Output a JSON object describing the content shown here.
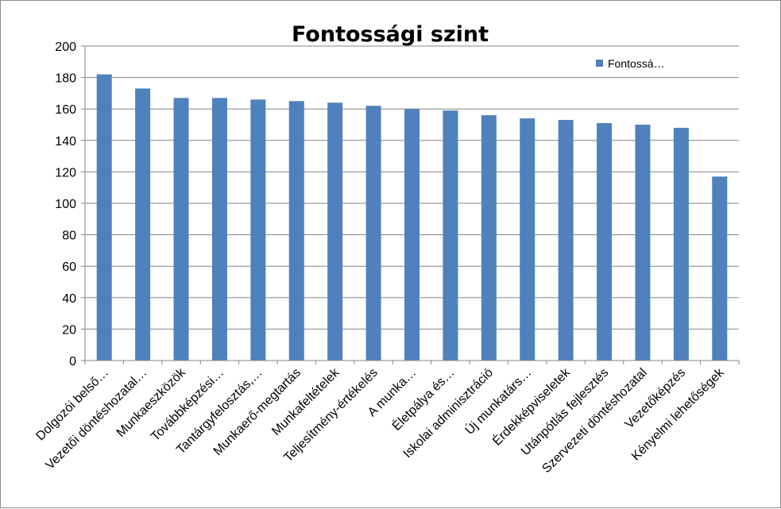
{
  "chart_data": {
    "type": "bar",
    "title": "Fontossági szint",
    "xlabel": "",
    "ylabel": "",
    "categories": [
      "Dolgozói belső…",
      "Vezetői döntéshozatal…",
      "Munkaeszközök",
      "Továbbképzési…",
      "Tantárgyfelosztás,…",
      "Munkaerő-megtartás",
      "Munkafeltételek",
      "Teljesítmény-értékelés",
      "A munka…",
      "Életpálya és…",
      "Iskolai adminisztráció",
      "Új munkatárs…",
      "Érdekképviseletek",
      "Utánpótlás fejlesztés",
      "Szervezeti döntéshozatal",
      "Vezetőképzés",
      "Kényelmi lehetőségek"
    ],
    "series": [
      {
        "name": "Fontossá…",
        "color": "#4f81bd",
        "values": [
          182,
          173,
          167,
          167,
          166,
          165,
          164,
          162,
          160,
          159,
          156,
          154,
          153,
          151,
          150,
          148,
          117
        ]
      }
    ],
    "ylim": [
      0,
      200
    ],
    "y_ticks": [
      "0",
      "20",
      "40",
      "60",
      "80",
      "100",
      "120",
      "140",
      "160",
      "180",
      "200"
    ],
    "grid": true,
    "legend_position": "top-right"
  }
}
